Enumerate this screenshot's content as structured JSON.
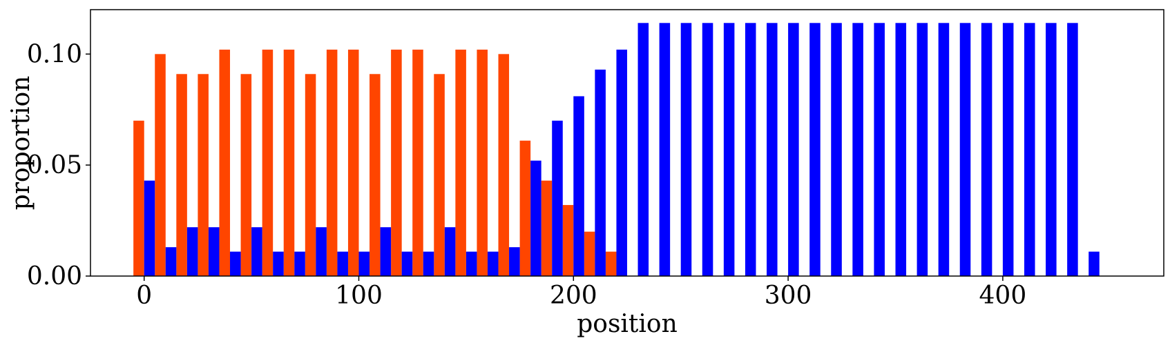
{
  "chart_data": {
    "type": "bar",
    "title": "",
    "xlabel": "position",
    "ylabel": "proportion",
    "xlim": [
      -25,
      475
    ],
    "ylim": [
      0,
      0.12
    ],
    "grid": false,
    "bin_width": 10,
    "x_ticks": [
      0,
      100,
      200,
      300,
      400
    ],
    "x_tick_labels": [
      "0",
      "100",
      "200",
      "300",
      "400"
    ],
    "y_ticks": [
      0,
      0.05,
      0.1
    ],
    "y_tick_labels": [
      "0.00",
      "0.05",
      "0.10"
    ],
    "series": [
      {
        "color": "#ff4500",
        "x": [
          0,
          10,
          20,
          30,
          40,
          50,
          60,
          70,
          80,
          90,
          100,
          110,
          120,
          130,
          140,
          150,
          160,
          170,
          180,
          190,
          200,
          210,
          220
        ],
        "values": [
          0.07,
          0.1,
          0.091,
          0.091,
          0.102,
          0.091,
          0.102,
          0.102,
          0.091,
          0.102,
          0.102,
          0.091,
          0.102,
          0.102,
          0.091,
          0.102,
          0.102,
          0.1,
          0.061,
          0.043,
          0.032,
          0.02,
          0.011
        ]
      },
      {
        "color": "#0000ff",
        "x": [
          0,
          10,
          20,
          30,
          40,
          50,
          60,
          70,
          80,
          90,
          100,
          110,
          120,
          130,
          140,
          150,
          160,
          170,
          180,
          190,
          200,
          210,
          220,
          230,
          240,
          250,
          260,
          270,
          280,
          290,
          300,
          310,
          320,
          330,
          340,
          350,
          360,
          370,
          380,
          390,
          400,
          410,
          420,
          430,
          440
        ],
        "values": [
          0.043,
          0.013,
          0.022,
          0.022,
          0.011,
          0.022,
          0.011,
          0.011,
          0.022,
          0.011,
          0.011,
          0.022,
          0.011,
          0.011,
          0.022,
          0.011,
          0.011,
          0.013,
          0.052,
          0.07,
          0.081,
          0.093,
          0.102,
          0.114,
          0.114,
          0.114,
          0.114,
          0.114,
          0.114,
          0.114,
          0.114,
          0.114,
          0.114,
          0.114,
          0.114,
          0.114,
          0.114,
          0.114,
          0.114,
          0.114,
          0.114,
          0.114,
          0.114,
          0.114,
          0.011
        ]
      }
    ]
  }
}
